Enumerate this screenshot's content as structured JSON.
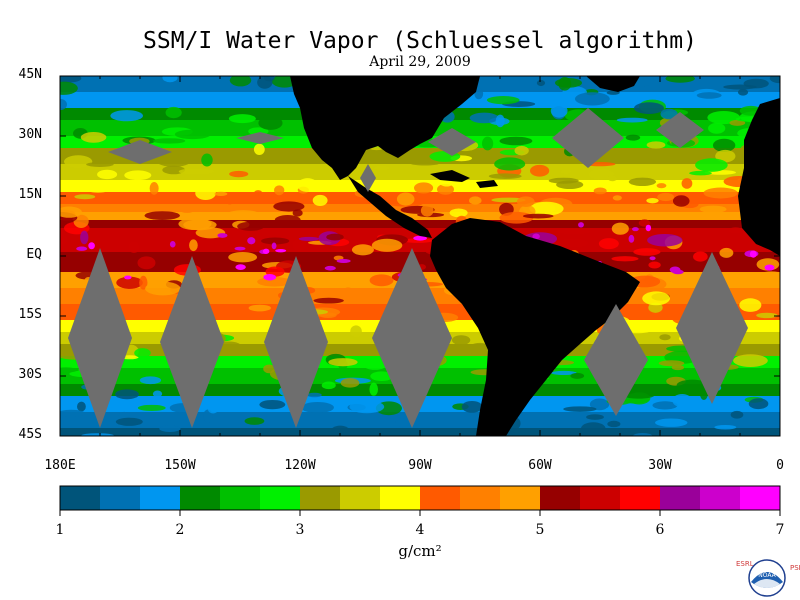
{
  "title": "SSM/I Water Vapor (Schluessel algorithm)",
  "subtitle": "April 29, 2009",
  "map": {
    "lat_labels": [
      "45N",
      "30N",
      "15N",
      "EQ",
      "15S",
      "30S",
      "45S"
    ],
    "lat_values": [
      45,
      30,
      15,
      0,
      -15,
      -30,
      -45
    ],
    "lon_labels": [
      "180E",
      "150W",
      "120W",
      "90W",
      "60W",
      "30W",
      "0"
    ],
    "lon_values": [
      -180,
      -150,
      -120,
      -90,
      -60,
      -30,
      0
    ],
    "lon_range": [
      -180,
      0
    ],
    "lat_range": [
      -45,
      45
    ],
    "land_color": "#000000",
    "no_data_color": "#6e6e6e"
  },
  "colorbar": {
    "tick_labels": [
      "1",
      "2",
      "3",
      "4",
      "5",
      "6",
      "7"
    ],
    "tick_values": [
      1,
      2,
      3,
      4,
      5,
      6,
      7
    ],
    "units": "g/cm²",
    "colors": [
      "#00547a",
      "#0071b3",
      "#0096f0",
      "#008a00",
      "#00c000",
      "#00f000",
      "#9a9a00",
      "#cccc00",
      "#ffff00",
      "#ff5a00",
      "#ff8000",
      "#ffa000",
      "#960000",
      "#cc0000",
      "#ff0000",
      "#9a009a",
      "#cc00cc",
      "#ff00ff"
    ]
  },
  "logo": {
    "left_letters": "ESRL",
    "right_letters": "PSD",
    "badge_text": "NOAA"
  },
  "chart_data": {
    "type": "heatmap",
    "title": "SSM/I Water Vapor (Schluessel algorithm)",
    "subtitle": "April 29, 2009",
    "variable": "water vapor",
    "units": "g/cm²",
    "color_scale_range": [
      1,
      7
    ],
    "x": {
      "range": [
        -180,
        0
      ],
      "ticks": [
        "180E",
        "150W",
        "120W",
        "90W",
        "60W",
        "30W",
        "0"
      ]
    },
    "y": {
      "range": [
        -45,
        45
      ],
      "ticks": [
        "45N",
        "30N",
        "15N",
        "EQ",
        "15S",
        "30S",
        "45S"
      ]
    },
    "zonal_profile": [
      {
        "lat": 45,
        "value": 1.3
      },
      {
        "lat": 37,
        "value": 2.0
      },
      {
        "lat": 28,
        "value": 2.9
      },
      {
        "lat": 20,
        "value": 3.6
      },
      {
        "lat": 12,
        "value": 4.5
      },
      {
        "lat": 5,
        "value": 5.6
      },
      {
        "lat": -3,
        "value": 5.1
      },
      {
        "lat": -11,
        "value": 4.4
      },
      {
        "lat": -20,
        "value": 3.6
      },
      {
        "lat": -28,
        "value": 2.7
      },
      {
        "lat": -36,
        "value": 1.9
      },
      {
        "lat": -45,
        "value": 1.2
      }
    ]
  }
}
